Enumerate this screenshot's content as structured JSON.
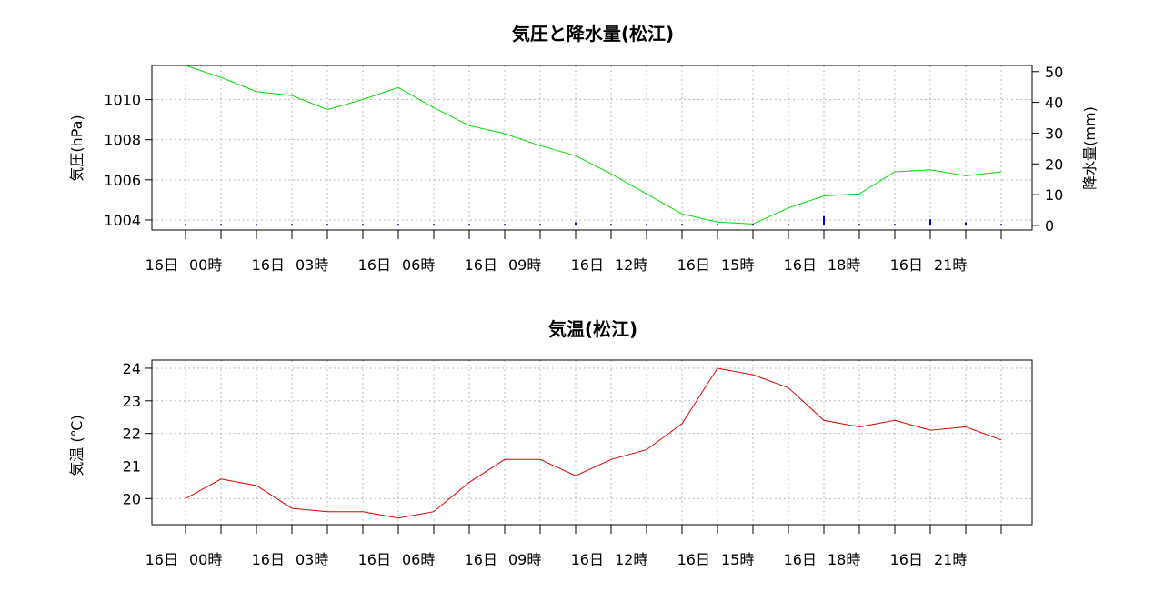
{
  "chart_data": [
    {
      "type": "line",
      "title": "気圧と降水量(松江)",
      "ylabel": "気圧(hPa)",
      "y2label": "降水量(mm)",
      "ylim": [
        1003.5,
        1011.7
      ],
      "y2lim": [
        -1.5,
        52
      ],
      "yticks": [
        1004,
        1006,
        1008,
        1010
      ],
      "y2ticks": [
        0,
        10,
        20,
        30,
        40,
        50
      ],
      "x_tick_labels": [
        "16日 00時",
        "16日 03時",
        "16日 06時",
        "16日 09時",
        "16日 12時",
        "16日 15時",
        "16日 18時",
        "16日 21時"
      ],
      "grid": true,
      "series": [
        {
          "name": "",
          "axis": "left",
          "style": "line",
          "color": "#00dd00",
          "values": [
            1011.7,
            1011.1,
            1010.4,
            1010.2,
            1009.5,
            1010.0,
            1010.6,
            1009.6,
            1008.7,
            1008.3,
            1007.7,
            1007.2,
            1006.3,
            1005.3,
            1004.3,
            1003.9,
            1003.8,
            1004.6,
            1005.2,
            1005.3,
            1006.4,
            1006.5,
            1006.2,
            1006.4
          ]
        },
        {
          "name": "",
          "axis": "right",
          "style": "bar",
          "color": "#0000cc",
          "values": [
            0.5,
            0.5,
            0.5,
            0.5,
            0.5,
            0.5,
            0.5,
            0.5,
            0.5,
            0.5,
            0.5,
            1.0,
            0.5,
            0.5,
            0.5,
            0.5,
            0.5,
            0.5,
            3.0,
            0.5,
            0.5,
            2.0,
            1.0,
            0.5
          ]
        }
      ]
    },
    {
      "type": "line",
      "title": "気温(松江)",
      "ylabel": "気温 (℃)",
      "ylim": [
        19.2,
        24.25
      ],
      "yticks": [
        20,
        21,
        22,
        23,
        24
      ],
      "x_tick_labels": [
        "16日 00時",
        "16日 03時",
        "16日 06時",
        "16日 09時",
        "16日 12時",
        "16日 15時",
        "16日 18時",
        "16日 21時"
      ],
      "grid": true,
      "series": [
        {
          "name": "",
          "axis": "left",
          "style": "line",
          "color": "#dd0000",
          "values": [
            20.0,
            20.6,
            20.4,
            19.7,
            19.6,
            19.6,
            19.4,
            19.6,
            20.5,
            21.2,
            21.2,
            20.7,
            21.2,
            21.5,
            22.3,
            24.0,
            23.8,
            23.4,
            22.4,
            22.2,
            22.4,
            22.1,
            22.2,
            21.8
          ]
        }
      ]
    }
  ]
}
